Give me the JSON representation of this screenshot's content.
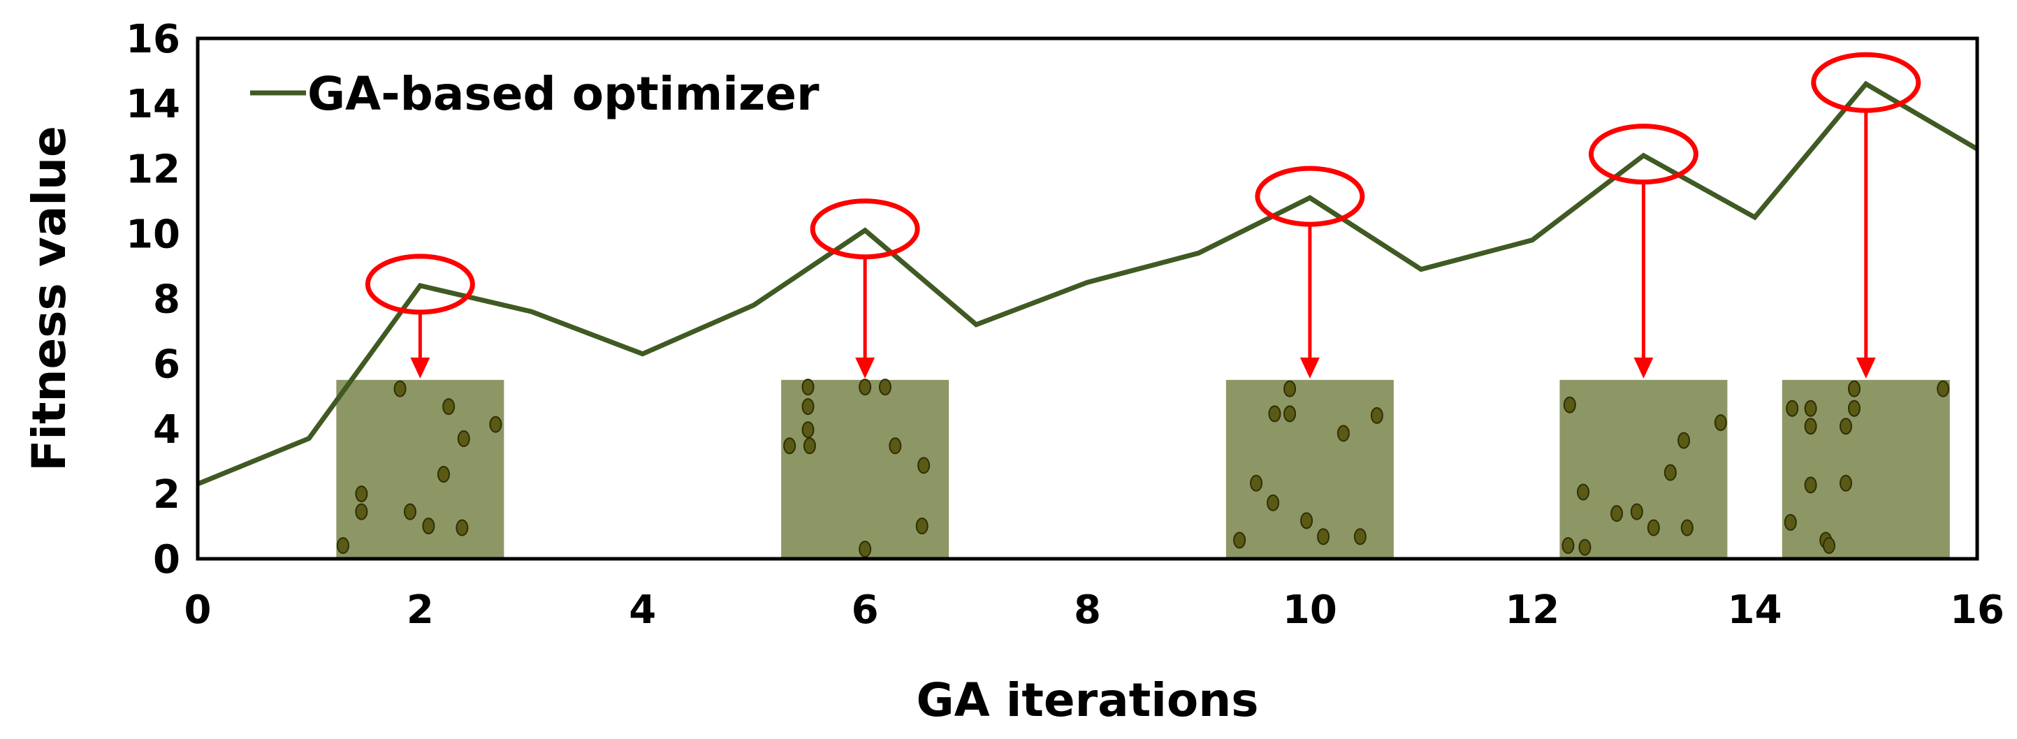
{
  "chart_data": {
    "type": "line",
    "title": "",
    "xlabel": "GA iterations",
    "ylabel": "Fitness value",
    "xlim": [
      0,
      16
    ],
    "ylim": [
      0,
      16
    ],
    "xticks": [
      0,
      2,
      4,
      6,
      8,
      10,
      12,
      14,
      16
    ],
    "yticks": [
      0,
      2,
      4,
      6,
      8,
      10,
      12,
      14,
      16
    ],
    "grid": false,
    "legend_position": "top-left",
    "series": [
      {
        "name": "GA-based optimizer",
        "color": "#3f5a22",
        "x": [
          0,
          1,
          2,
          3,
          4,
          5,
          6,
          7,
          8,
          9,
          10,
          11,
          12,
          13,
          14,
          15,
          16
        ],
        "y": [
          2.3,
          3.7,
          8.4,
          7.6,
          6.3,
          7.8,
          10.1,
          7.2,
          8.5,
          9.4,
          11.1,
          8.9,
          9.8,
          12.4,
          10.5,
          14.6,
          12.6
        ]
      }
    ],
    "highlighted_points": [
      {
        "x": 2,
        "y": 8.4
      },
      {
        "x": 6,
        "y": 10.1
      },
      {
        "x": 10,
        "y": 11.1
      },
      {
        "x": 13,
        "y": 12.4
      },
      {
        "x": 15,
        "y": 14.6
      }
    ],
    "inset_images": [
      {
        "x_center": 2,
        "y_top": 5.5,
        "description_icon": "microscopy-panel"
      },
      {
        "x_center": 6,
        "y_top": 5.5,
        "description_icon": "microscopy-panel"
      },
      {
        "x_center": 10,
        "y_top": 5.5,
        "description_icon": "microscopy-panel"
      },
      {
        "x_center": 13,
        "y_top": 5.5,
        "description_icon": "microscopy-panel"
      },
      {
        "x_center": 15,
        "y_top": 5.5,
        "description_icon": "microscopy-panel"
      }
    ],
    "colors": {
      "line": "#3f5a22",
      "highlight": "#ff0000",
      "inset_background": "#8d9766",
      "inset_cell": "#5a5a14"
    }
  }
}
